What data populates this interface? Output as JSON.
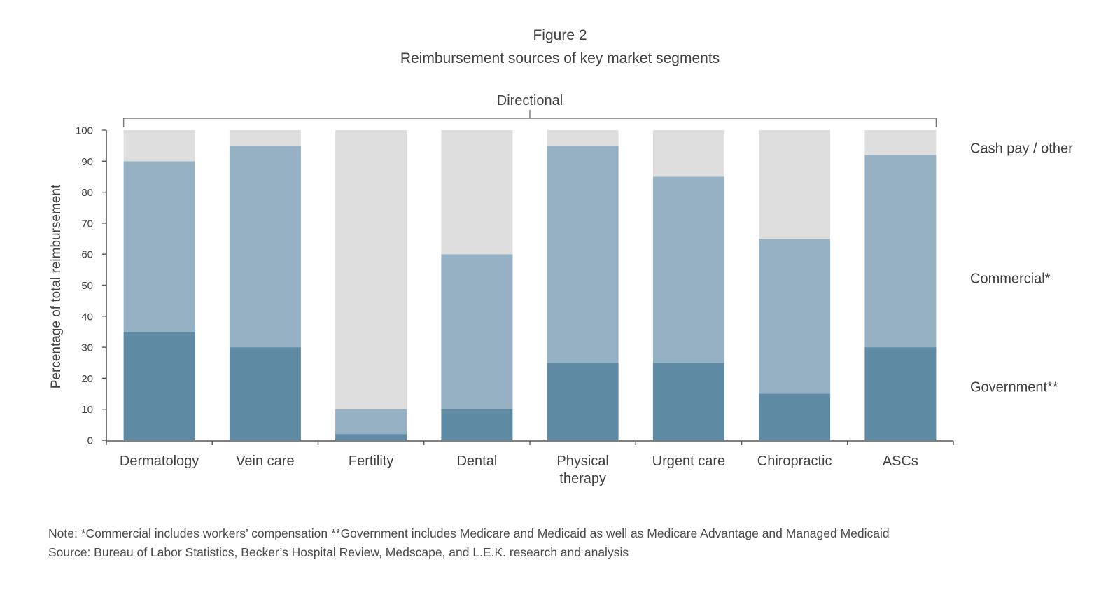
{
  "figure": {
    "number": "Figure 2",
    "title": "Reimbursement sources of key market segments"
  },
  "chart_data": {
    "type": "bar",
    "stacked": true,
    "bracket_label": "Directional",
    "ylabel": "Percentage of total reimbursement",
    "ylim": [
      0,
      100
    ],
    "yticks": [
      0,
      10,
      20,
      30,
      40,
      50,
      60,
      70,
      80,
      90,
      100
    ],
    "categories": [
      [
        "Dermatology"
      ],
      [
        "Vein care"
      ],
      [
        "Fertility"
      ],
      [
        "Dental"
      ],
      [
        "Physical",
        "therapy"
      ],
      [
        "Urgent care"
      ],
      [
        "Chiropractic"
      ],
      [
        "ASCs"
      ]
    ],
    "series": [
      {
        "name": "Government**",
        "color": "#5f8aa3",
        "values": [
          35,
          30,
          2,
          10,
          25,
          25,
          15,
          30
        ]
      },
      {
        "name": "Commercial*",
        "color": "#97b1c4",
        "values": [
          55,
          65,
          8,
          50,
          70,
          60,
          50,
          62
        ]
      },
      {
        "name": "Cash pay / other",
        "color": "#dedede",
        "values": [
          10,
          5,
          90,
          40,
          5,
          15,
          35,
          8
        ]
      }
    ],
    "legend_position": "right",
    "grid": false
  },
  "notes": {
    "note": "Note: *Commercial includes workers’ compensation **Government includes Medicare and Medicaid as well as Medicare Advantage and Managed Medicaid",
    "source": "Source: Bureau of Labor Statistics, Becker’s Hospital Review, Medscape, and L.E.K. research and analysis"
  }
}
